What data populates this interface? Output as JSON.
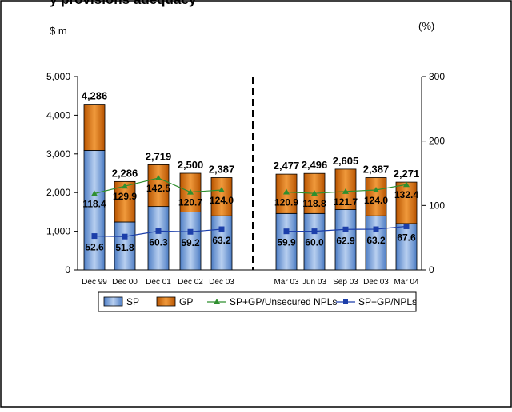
{
  "chart_data": {
    "type": "bar",
    "header_fragment": "y provisions adequacy",
    "ylabel_left": "$ m",
    "ylabel_right": "(%)",
    "ylim_left": [
      0,
      5000
    ],
    "ylim_right": [
      0,
      300
    ],
    "yticks_left": [
      "0",
      "1,000",
      "2,000",
      "3,000",
      "4,000",
      "5,000"
    ],
    "yticks_right": [
      "0",
      "100",
      "200",
      "300"
    ],
    "stacked": true,
    "groups": [
      {
        "categories": [
          "Dec 99",
          "Dec 00",
          "Dec 01",
          "Dec 02",
          "Dec 03"
        ]
      },
      {
        "categories": [
          "Mar 03",
          "Jun 03",
          "Sep 03",
          "Dec 03",
          "Mar 04"
        ]
      }
    ],
    "categories": [
      "Dec 99",
      "Dec 00",
      "Dec 01",
      "Dec 02",
      "Dec 03",
      "Mar 03",
      "Jun 03",
      "Sep 03",
      "Dec 03",
      "Mar 04"
    ],
    "series": [
      {
        "name": "SP",
        "kind": "bar",
        "axis": "left",
        "color": "#6f9ad6",
        "values": [
          3090,
          1240,
          1640,
          1500,
          1400,
          1460,
          1460,
          1560,
          1400,
          1200
        ]
      },
      {
        "name": "GP",
        "kind": "bar",
        "axis": "left",
        "color": "#d86a0c",
        "values": [
          1196,
          1046,
          1079,
          1000,
          987,
          1017,
          1036,
          1045,
          987,
          1071
        ]
      },
      {
        "name": "SP+GP/Unsecured NPLs",
        "kind": "line",
        "axis": "right",
        "color": "#2f8f2f",
        "marker": "triangle",
        "values": [
          118.4,
          129.9,
          142.5,
          120.7,
          124.0,
          120.9,
          118.8,
          121.7,
          124.0,
          132.4
        ]
      },
      {
        "name": "SP+GP/NPLs",
        "kind": "line",
        "axis": "right",
        "color": "#1c3faa",
        "marker": "square",
        "values": [
          52.6,
          51.8,
          60.3,
          59.2,
          63.2,
          59.9,
          60.0,
          62.9,
          63.2,
          67.6
        ]
      }
    ],
    "total_labels": [
      "4,286",
      "2,286",
      "2,719",
      "2,500",
      "2,387",
      "2,477",
      "2,496",
      "2,605",
      "2,387",
      "2,271"
    ],
    "ratio_labels_unsecured": [
      "118.4",
      "129.9",
      "142.5",
      "120.7",
      "124.0",
      "120.9",
      "118.8",
      "121.7",
      "124.0",
      "132.4"
    ],
    "ratio_labels_npl": [
      "52.6",
      "51.8",
      "60.3",
      "59.2",
      "63.2",
      "59.9",
      "60.0",
      "62.9",
      "63.2",
      "67.6"
    ],
    "legend": [
      "SP",
      "GP",
      "SP+GP/Unsecured NPLs",
      "SP+GP/NPLs"
    ],
    "legend_position": "bottom",
    "grid": false
  }
}
